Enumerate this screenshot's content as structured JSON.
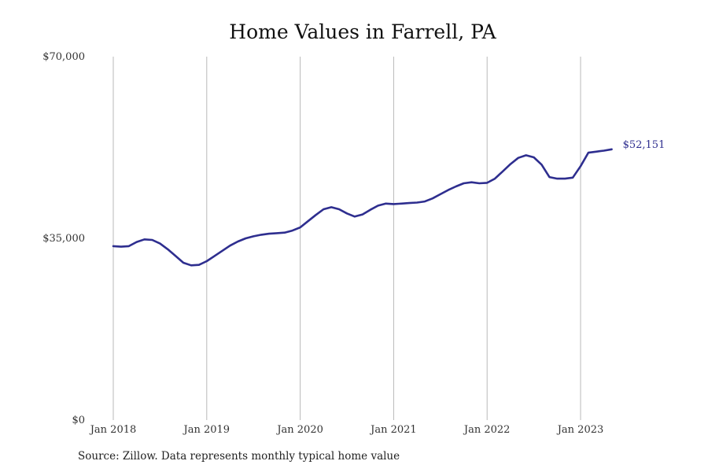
{
  "page": {
    "source_note": "Source: Zillow. Data represents monthly typical home value"
  },
  "colors": {
    "line": "#2e2e8f",
    "grid": "#b9b9b9",
    "text": "#222222"
  },
  "chart_data": {
    "type": "line",
    "title": "Home Values in Farrell, PA",
    "xlabel": "",
    "ylabel": "",
    "ylim": [
      0,
      70000
    ],
    "yticks": [
      {
        "value": 0,
        "label": "$0"
      },
      {
        "value": 35000,
        "label": "$35,000"
      },
      {
        "value": 70000,
        "label": "$70,000"
      }
    ],
    "xlim": [
      "2018-01",
      "2023-12"
    ],
    "xticks": [
      {
        "value": "2018-01",
        "label": "Jan 2018"
      },
      {
        "value": "2019-01",
        "label": "Jan 2019"
      },
      {
        "value": "2020-01",
        "label": "Jan 2020"
      },
      {
        "value": "2021-01",
        "label": "Jan 2021"
      },
      {
        "value": "2022-01",
        "label": "Jan 2022"
      },
      {
        "value": "2023-01",
        "label": "Jan 2023"
      }
    ],
    "grid": "vertical",
    "legend": "none",
    "end_label": "$52,151",
    "series": [
      {
        "x": [
          "2018-01",
          "2018-02",
          "2018-03",
          "2018-04",
          "2018-05",
          "2018-06",
          "2018-07",
          "2018-08",
          "2018-09",
          "2018-10",
          "2018-11",
          "2018-12",
          "2019-01",
          "2019-02",
          "2019-03",
          "2019-04",
          "2019-05",
          "2019-06",
          "2019-07",
          "2019-08",
          "2019-09",
          "2019-10",
          "2019-11",
          "2019-12",
          "2020-01",
          "2020-02",
          "2020-03",
          "2020-04",
          "2020-05",
          "2020-06",
          "2020-07",
          "2020-08",
          "2020-09",
          "2020-10",
          "2020-11",
          "2020-12",
          "2021-01",
          "2021-02",
          "2021-03",
          "2021-04",
          "2021-05",
          "2021-06",
          "2021-07",
          "2021-08",
          "2021-09",
          "2021-10",
          "2021-11",
          "2021-12",
          "2022-01",
          "2022-02",
          "2022-03",
          "2022-04",
          "2022-05",
          "2022-06",
          "2022-07",
          "2022-08",
          "2022-09",
          "2022-10",
          "2022-11",
          "2022-12",
          "2023-01",
          "2023-02",
          "2023-03",
          "2023-04",
          "2023-05"
        ],
        "values": [
          33500,
          33400,
          33500,
          34300,
          34800,
          34700,
          34000,
          32900,
          31600,
          30300,
          29800,
          29900,
          30600,
          31600,
          32600,
          33600,
          34400,
          35000,
          35400,
          35700,
          35900,
          36000,
          36100,
          36500,
          37100,
          38300,
          39500,
          40600,
          41000,
          40600,
          39800,
          39200,
          39600,
          40500,
          41300,
          41700,
          41600,
          41700,
          41800,
          41900,
          42100,
          42700,
          43500,
          44300,
          45000,
          45600,
          45800,
          45600,
          45700,
          46500,
          47900,
          49300,
          50500,
          51000,
          50600,
          49200,
          46800,
          46500,
          46500,
          46700,
          48900,
          51500,
          51700,
          51900,
          52151
        ]
      }
    ]
  }
}
